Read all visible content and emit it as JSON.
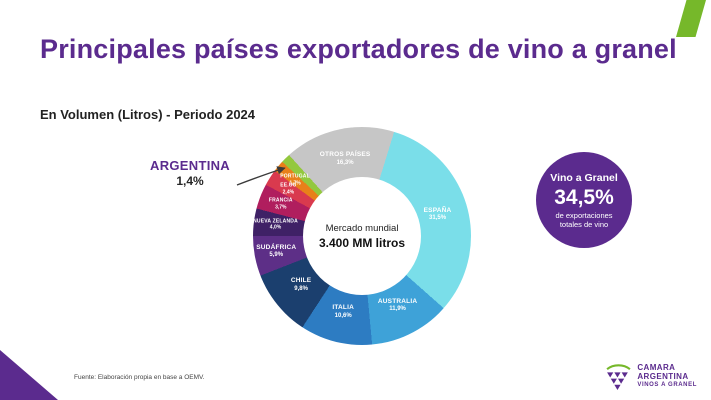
{
  "title": "Principales países exportadores de vino a granel",
  "subtitle": "En Volumen (Litros) - Periodo 2024",
  "center": {
    "line1": "Mercado mundial",
    "line2": "3.400 MM litros"
  },
  "callout": {
    "name": "ARGENTINA",
    "value": "1,4%"
  },
  "badge": {
    "line1": "Vino a Granel",
    "value": "34,5%",
    "line2": "de exportaciones totales de vino"
  },
  "source": "Fuente: Elaboración propia en base a OEMV.",
  "logo": {
    "line1": "CAMARA",
    "line2": "ARGENTINA",
    "line3": "VINOS A GRANEL"
  },
  "colors": {
    "brand_purple": "#5b2b8e",
    "brand_green": "#76b82a",
    "background": "#ffffff"
  },
  "chart_data": {
    "type": "pie",
    "subtype": "donut",
    "title": "Principales países exportadores de vino a granel",
    "subtitle": "En Volumen (Litros) - Periodo 2024",
    "legend": "labels-on-slices",
    "start_angle_deg": -42,
    "center_label": "Mercado mundial 3.400 MM litros",
    "segments": [
      {
        "label": "OTROS PAÍSES",
        "value": 16.3,
        "display": "16,3%",
        "color": "#c6c6c6",
        "external": false
      },
      {
        "label": "ESPAÑA",
        "value": 31.5,
        "display": "31,5%",
        "color": "#7adee9",
        "external": false
      },
      {
        "label": "AUSTRALIA",
        "value": 11.9,
        "display": "11,9%",
        "color": "#3ea2d8",
        "external": false
      },
      {
        "label": "ITALIA",
        "value": 10.6,
        "display": "10,6%",
        "color": "#2d7cc2",
        "external": false
      },
      {
        "label": "CHILE",
        "value": 9.8,
        "display": "9,8%",
        "color": "#1b3f6e",
        "external": false
      },
      {
        "label": "SUDÁFRICA",
        "value": 5.9,
        "display": "5,9%",
        "color": "#5d2f87",
        "external": false
      },
      {
        "label": "NUEVA ZELANDA",
        "value": 4.0,
        "display": "4,0%",
        "color": "#3f2166",
        "external": false
      },
      {
        "label": "FRANCIA",
        "value": 3.7,
        "display": "3,7%",
        "color": "#b01e5e",
        "external": false
      },
      {
        "label": "EE.UU",
        "value": 2.4,
        "display": "2,4%",
        "color": "#d93a4e",
        "external": false
      },
      {
        "label": "PORTUGAL",
        "value": 1.7,
        "display": "1,7%",
        "color": "#e8801a",
        "external": false
      },
      {
        "label": "ARGENTINA",
        "value": 1.4,
        "display": "1,4%",
        "color": "#93c83e",
        "external": true
      }
    ]
  }
}
